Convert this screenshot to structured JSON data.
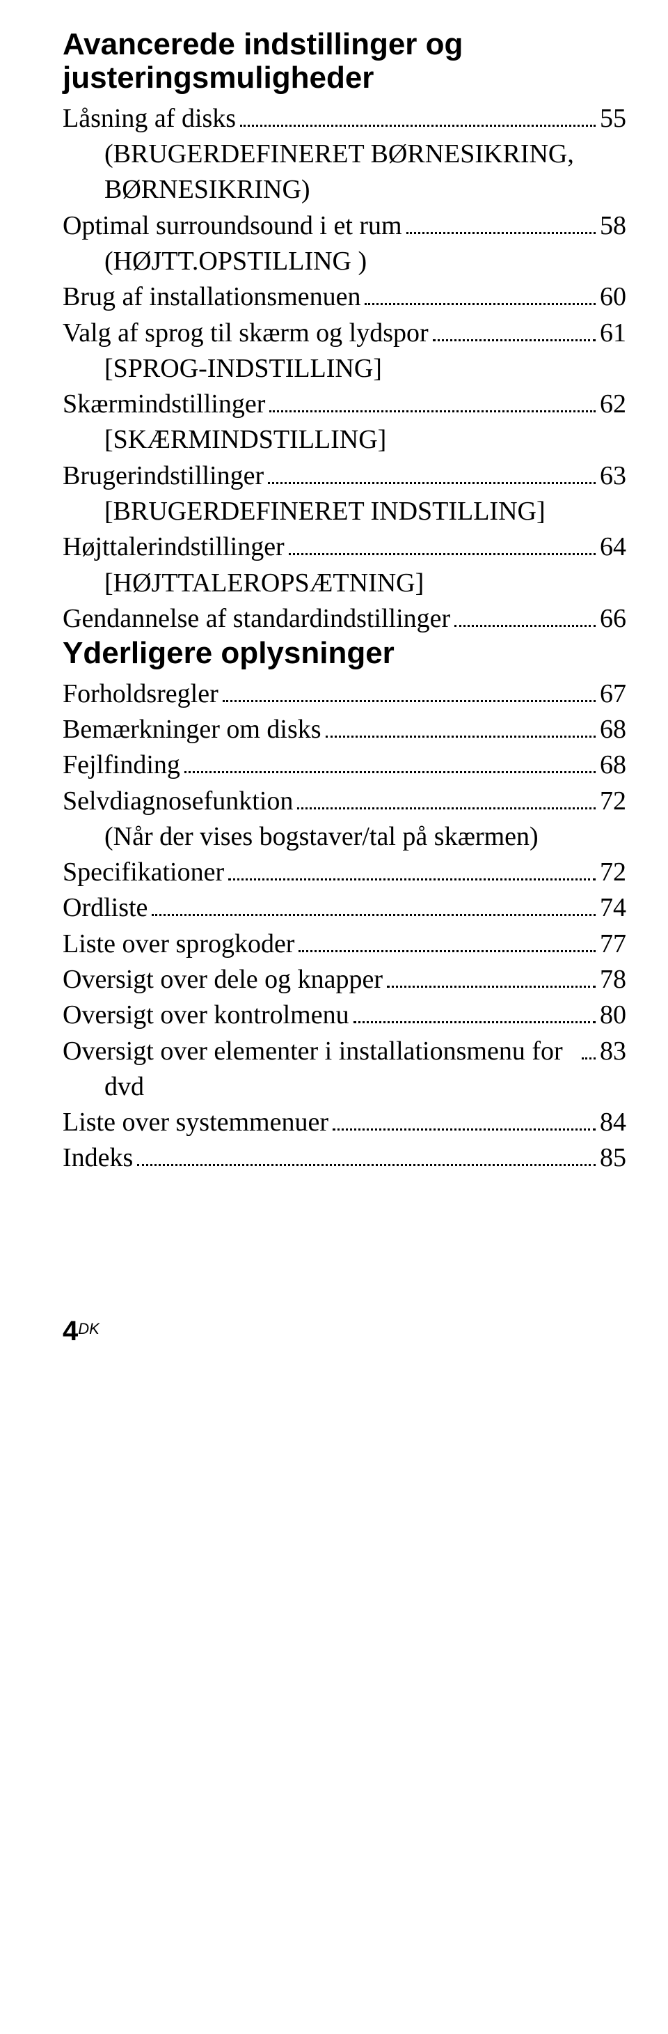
{
  "sections": [
    {
      "heading": "Avancerede indstillinger og justeringsmuligheder",
      "entries": [
        {
          "label": "Låsning af disks",
          "page": "55",
          "indent": 0
        },
        {
          "label": "(BRUGERDEFINERET BØRNESIKRING, BØRNESIKRING)",
          "page": null,
          "indent": 1
        },
        {
          "label": "Optimal surroundsound i et rum",
          "page": "58",
          "indent": 0
        },
        {
          "label": "(HØJTT.OPSTILLING )",
          "page": null,
          "indent": 1
        },
        {
          "label": "Brug af installationsmenuen",
          "page": "60",
          "indent": 0
        },
        {
          "label": "Valg af sprog til skærm og lydspor",
          "page": "61",
          "indent": 0
        },
        {
          "label": "[SPROG-INDSTILLING]",
          "page": null,
          "indent": 1
        },
        {
          "label": "Skærmindstillinger",
          "page": "62",
          "indent": 0
        },
        {
          "label": "[SKÆRMINDSTILLING]",
          "page": null,
          "indent": 1
        },
        {
          "label": "Brugerindstillinger",
          "page": "63",
          "indent": 0
        },
        {
          "label": "[BRUGERDEFINERET INDSTILLING]",
          "page": null,
          "indent": 1
        },
        {
          "label": "Højttalerindstillinger",
          "page": "64",
          "indent": 0
        },
        {
          "label": "[HØJTTALEROPSÆTNING]",
          "page": null,
          "indent": 1
        },
        {
          "label": "Gendannelse af standardindstillinger",
          "page": "66",
          "indent": 0
        }
      ]
    },
    {
      "heading": "Yderligere oplysninger",
      "entries": [
        {
          "label": "Forholdsregler",
          "page": "67",
          "indent": 0
        },
        {
          "label": "Bemærkninger om disks",
          "page": "68",
          "indent": 0
        },
        {
          "label": "Fejlfinding",
          "page": "68",
          "indent": 0
        },
        {
          "label": "Selvdiagnosefunktion",
          "page": "72",
          "indent": 0
        },
        {
          "label": "(Når der vises bogstaver/tal på skærmen)",
          "page": null,
          "indent": 1
        },
        {
          "label": "Specifikationer",
          "page": "72",
          "indent": 0
        },
        {
          "label": "Ordliste",
          "page": "74",
          "indent": 0
        },
        {
          "label": "Liste over sprogkoder",
          "page": "77",
          "indent": 0
        },
        {
          "label": "Oversigt over dele og knapper",
          "page": "78",
          "indent": 0
        },
        {
          "label": "Oversigt over kontrolmenu",
          "page": "80",
          "indent": 0
        },
        {
          "label": "Oversigt over elementer i installationsmenu for dvd",
          "page": "83",
          "indent": 0,
          "hanging": true
        },
        {
          "label": "Liste over systemmenuer",
          "page": "84",
          "indent": 0
        },
        {
          "label": "Indeks",
          "page": "85",
          "indent": 0
        }
      ]
    }
  ],
  "footer": {
    "page_number": "4",
    "suffix": "DK"
  }
}
